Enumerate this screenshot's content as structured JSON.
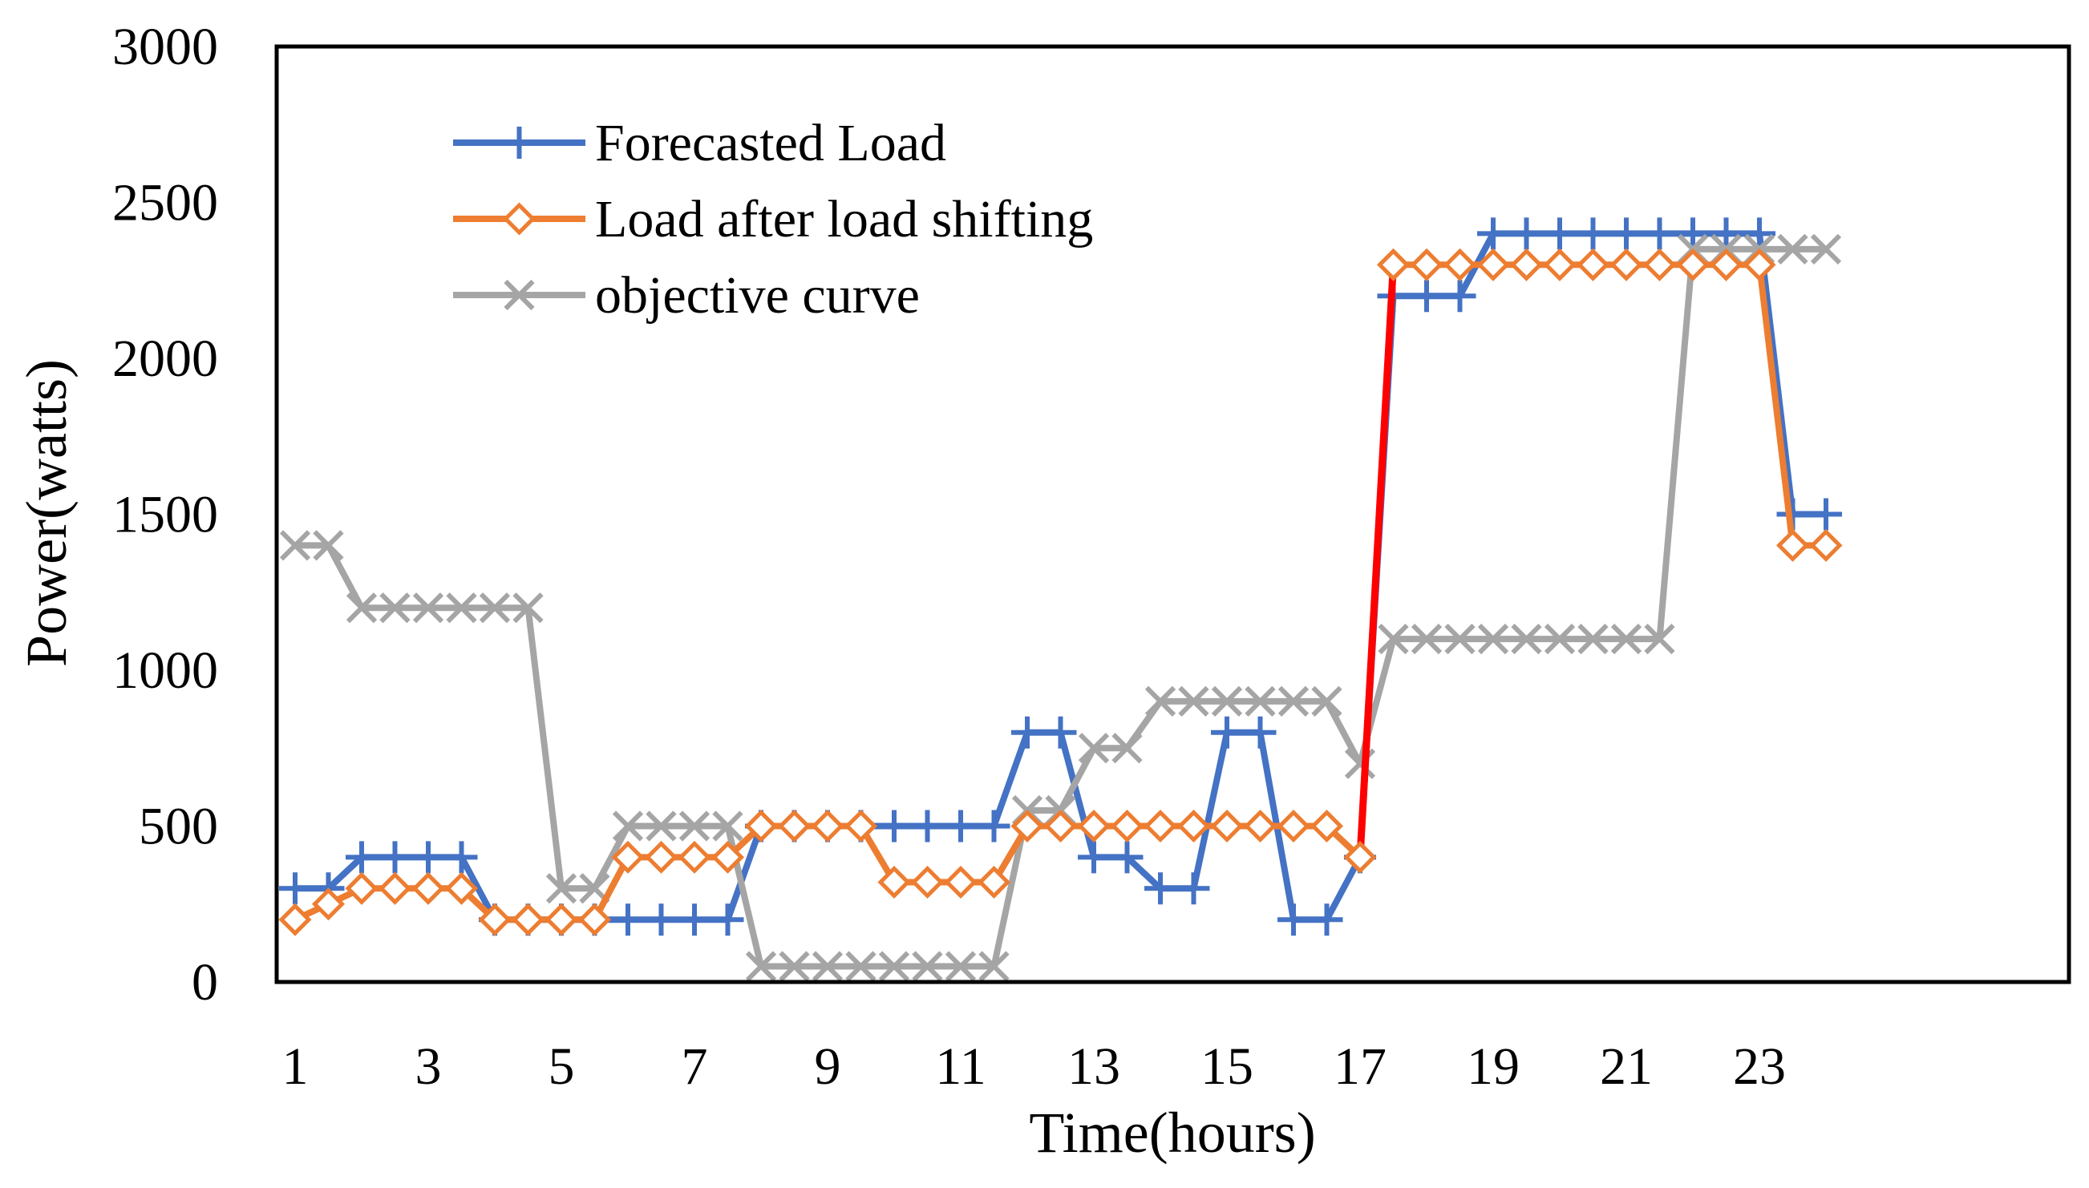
{
  "chart_data": {
    "type": "line",
    "xlabel": "Time(hours)",
    "ylabel": "Power(watts)",
    "ylim": [
      0,
      3000
    ],
    "xlim": [
      1,
      24.2
    ],
    "yticks": [
      0,
      500,
      1000,
      1500,
      2000,
      2500,
      3000
    ],
    "xticks": [
      1,
      3,
      5,
      7,
      9,
      11,
      13,
      15,
      17,
      19,
      21,
      23
    ],
    "legend_position": "top-left",
    "grid": false,
    "series": [
      {
        "name": "Forecasted Load",
        "color": "#4472C4",
        "marker": "plus",
        "x": [
          1,
          1.5,
          2,
          2.5,
          3,
          3.5,
          4,
          4.5,
          5,
          5.5,
          6,
          6.5,
          7,
          7.5,
          8,
          8.5,
          9,
          9.5,
          10,
          10.5,
          11,
          11.5,
          12,
          12.5,
          13,
          13.5,
          14,
          14.5,
          15,
          15.5,
          16,
          16.5,
          17,
          17.5,
          18,
          18.5,
          19,
          19.5,
          20,
          20.5,
          21,
          21.5,
          22,
          22.5,
          23,
          23.5,
          24
        ],
        "values": [
          300,
          300,
          400,
          400,
          400,
          400,
          200,
          200,
          200,
          200,
          200,
          200,
          200,
          200,
          500,
          500,
          500,
          500,
          500,
          500,
          500,
          500,
          800,
          800,
          400,
          400,
          300,
          300,
          800,
          800,
          200,
          200,
          400,
          2200,
          2200,
          2200,
          2400,
          2400,
          2400,
          2400,
          2400,
          2400,
          2400,
          2400,
          2400,
          1500,
          1500
        ]
      },
      {
        "name": "Load after load shifting",
        "color": "#ED7D31",
        "marker": "diamond",
        "x": [
          1,
          1.5,
          2,
          2.5,
          3,
          3.5,
          4,
          4.5,
          5,
          5.5,
          6,
          6.5,
          7,
          7.5,
          8,
          8.5,
          9,
          9.5,
          10,
          10.5,
          11,
          11.5,
          12,
          12.5,
          13,
          13.5,
          14,
          14.5,
          15,
          15.5,
          16,
          16.5,
          17,
          17.5,
          18,
          18.5,
          19,
          19.5,
          20,
          20.5,
          21,
          21.5,
          22,
          22.5,
          23,
          23.5,
          24
        ],
        "values": [
          200,
          250,
          300,
          300,
          300,
          300,
          200,
          200,
          200,
          200,
          400,
          400,
          400,
          400,
          500,
          500,
          500,
          500,
          320,
          320,
          320,
          320,
          500,
          500,
          500,
          500,
          500,
          500,
          500,
          500,
          500,
          500,
          400,
          2300,
          2300,
          2300,
          2300,
          2300,
          2300,
          2300,
          2300,
          2300,
          2300,
          2300,
          2300,
          1400,
          1400
        ],
        "highlight_segment": {
          "from_x": 17,
          "to_x": 17.5,
          "color": "#FF0000"
        }
      },
      {
        "name": "objective curve",
        "color": "#A5A5A5",
        "marker": "x",
        "x": [
          1,
          1.5,
          2,
          2.5,
          3,
          3.5,
          4,
          4.5,
          5,
          5.5,
          6,
          6.5,
          7,
          7.5,
          8,
          8.5,
          9,
          9.5,
          10,
          10.5,
          11,
          11.5,
          12,
          12.5,
          13,
          13.5,
          14,
          14.5,
          15,
          15.5,
          16,
          16.5,
          17,
          17.5,
          18,
          18.5,
          19,
          19.5,
          20,
          20.5,
          21,
          21.5,
          22,
          22.5,
          23,
          23.5,
          24
        ],
        "values": [
          1400,
          1400,
          1200,
          1200,
          1200,
          1200,
          1200,
          1200,
          300,
          300,
          500,
          500,
          500,
          500,
          50,
          50,
          50,
          50,
          50,
          50,
          50,
          50,
          550,
          550,
          750,
          750,
          900,
          900,
          900,
          900,
          900,
          900,
          700,
          1100,
          1100,
          1100,
          1100,
          1100,
          1100,
          1100,
          1100,
          1100,
          2350,
          2350,
          2350,
          2350,
          2350
        ]
      }
    ]
  }
}
